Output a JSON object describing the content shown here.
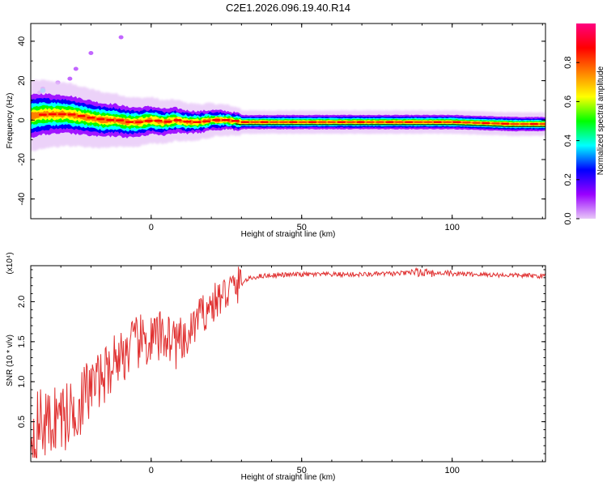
{
  "title": "C2E1.2026.096.19.40.R14",
  "chart_data": [
    {
      "type": "heatmap",
      "xlabel": "Height of straight line (km)",
      "ylabel": "Frequency (Hz)",
      "xlim": [
        -40,
        131
      ],
      "ylim": [
        -50,
        49
      ],
      "xticks": [
        0,
        50,
        100
      ],
      "yticks": [
        40,
        20,
        0,
        -20,
        -40
      ],
      "xtick_labels": [
        "0",
        "50",
        "100"
      ],
      "ytick_labels": [
        "40",
        "20",
        "0",
        "-20",
        "-40"
      ],
      "ridge": {
        "x": [
          -40,
          -36,
          -32,
          -28,
          -24,
          -20,
          -16,
          -12,
          -8,
          -4,
          0,
          4,
          8,
          12,
          16,
          20,
          25,
          30,
          40,
          60,
          80,
          100,
          120,
          131
        ],
        "freq": [
          2,
          3,
          3,
          3,
          2,
          1,
          0,
          0,
          -1,
          -1,
          0,
          -1,
          0,
          -1,
          -1,
          0,
          0,
          -1,
          -1,
          -1,
          -1,
          -1,
          -2,
          -2
        ]
      },
      "colorbar": {
        "label": "Normalized spectral amplitude",
        "range": [
          0,
          1
        ],
        "ticks": [
          0.0,
          0.2,
          0.4,
          0.6,
          0.8
        ],
        "tick_labels": [
          "0.0",
          "0.2",
          "0.4",
          "0.6",
          "0.8"
        ],
        "colors": [
          "#e8c8f8",
          "#9900ff",
          "#0000ff",
          "#00ffff",
          "#00ff00",
          "#ffff00",
          "#ff8000",
          "#ff0000",
          "#ff0080"
        ]
      }
    },
    {
      "type": "line",
      "xlabel": "Height of straight line (km)",
      "ylabel": "SNR (10 * v/v)",
      "multiplier": "(x10⁴)",
      "xlim": [
        -40,
        131
      ],
      "ylim": [
        0,
        2.45
      ],
      "xticks": [
        0,
        50,
        100
      ],
      "yticks": [
        0.5,
        1.0,
        1.5,
        2.0
      ],
      "xtick_labels": [
        "0",
        "50",
        "100"
      ],
      "ytick_labels": [
        "0.5",
        "1.0",
        "1.5",
        "2.0"
      ],
      "color": "#e03030",
      "series": [
        {
          "x": [
            -40,
            -37,
            -34,
            -31,
            -28,
            -25,
            -22,
            -20,
            -18,
            -15,
            -12,
            -9,
            -6,
            -3,
            0,
            3,
            5,
            8,
            10,
            12,
            14,
            17,
            20,
            23,
            26,
            29,
            32,
            36,
            40,
            50,
            60,
            70,
            80,
            90,
            100,
            110,
            120,
            131
          ],
          "y": [
            0.3,
            0.5,
            0.45,
            0.6,
            0.55,
            0.7,
            0.8,
            0.95,
            1.0,
            1.1,
            1.3,
            1.35,
            1.45,
            1.5,
            1.5,
            1.55,
            1.6,
            1.5,
            1.45,
            1.5,
            1.7,
            1.85,
            1.95,
            2.05,
            2.15,
            2.2,
            2.28,
            2.32,
            2.33,
            2.34,
            2.34,
            2.34,
            2.35,
            2.36,
            2.35,
            2.34,
            2.33,
            2.32
          ]
        }
      ]
    }
  ]
}
